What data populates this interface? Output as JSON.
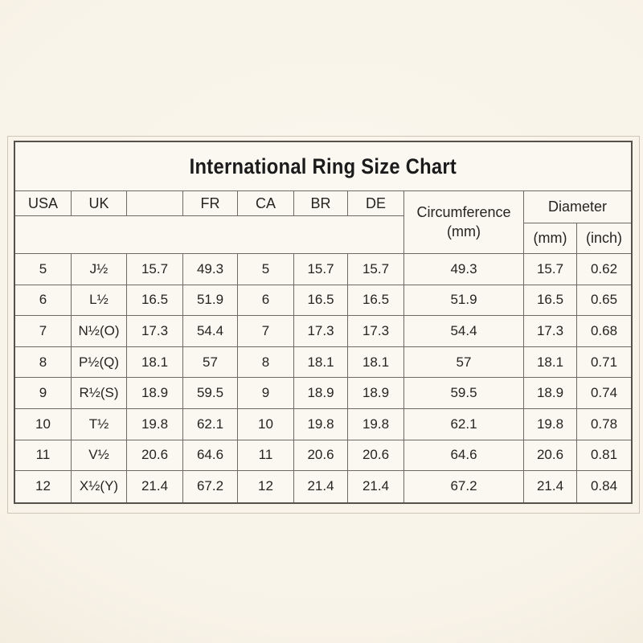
{
  "chart_data": {
    "type": "table",
    "title": "International Ring Size Chart",
    "header_row": [
      "USA",
      "UK",
      "",
      "FR",
      "CA",
      "BR",
      "DE"
    ],
    "grouped_headers": {
      "circumference": {
        "line1": "Circumference",
        "line2": "(mm)"
      },
      "diameter": {
        "label": "Diameter",
        "sub": [
          "(mm)",
          "(inch)"
        ]
      }
    },
    "rows": [
      [
        "5",
        "J½",
        "15.7",
        "49.3",
        "5",
        "15.7",
        "15.7",
        "49.3",
        "15.7",
        "0.62"
      ],
      [
        "6",
        "L½",
        "16.5",
        "51.9",
        "6",
        "16.5",
        "16.5",
        "51.9",
        "16.5",
        "0.65"
      ],
      [
        "7",
        "N½(O)",
        "17.3",
        "54.4",
        "7",
        "17.3",
        "17.3",
        "54.4",
        "17.3",
        "0.68"
      ],
      [
        "8",
        "P½(Q)",
        "18.1",
        "57",
        "8",
        "18.1",
        "18.1",
        "57",
        "18.1",
        "0.71"
      ],
      [
        "9",
        "R½(S)",
        "18.9",
        "59.5",
        "9",
        "18.9",
        "18.9",
        "59.5",
        "18.9",
        "0.74"
      ],
      [
        "10",
        "T½",
        "19.8",
        "62.1",
        "10",
        "19.8",
        "19.8",
        "62.1",
        "19.8",
        "0.78"
      ],
      [
        "11",
        "V½",
        "20.6",
        "64.6",
        "11",
        "20.6",
        "20.6",
        "64.6",
        "20.6",
        "0.81"
      ],
      [
        "12",
        "X½(Y)",
        "21.4",
        "67.2",
        "12",
        "21.4",
        "21.4",
        "67.2",
        "21.4",
        "0.84"
      ]
    ]
  },
  "colors": {
    "page_background": "#f8f3e8",
    "table_background": "#fbf8f1",
    "grid_line": "#6e6a62",
    "outer_border": "#56524b",
    "frame_line": "#cdc6b6",
    "text": "#26241f"
  }
}
